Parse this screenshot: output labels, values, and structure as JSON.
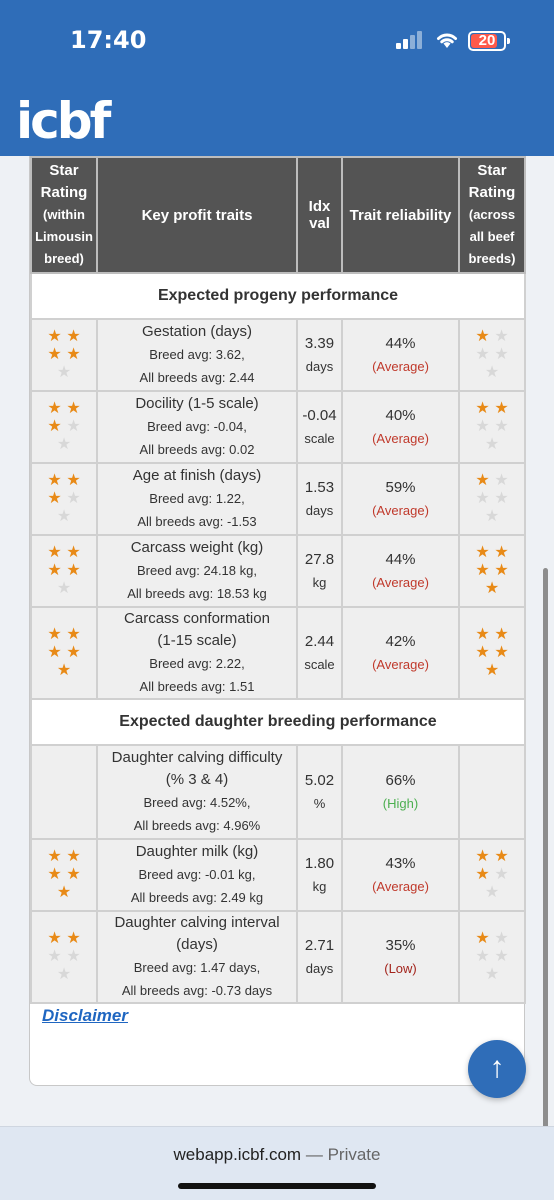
{
  "status": {
    "time": "17:40",
    "battery": "20"
  },
  "app": {
    "logo": "icbf"
  },
  "table": {
    "headers": {
      "star_within": [
        "Star",
        "Rating",
        "(within",
        "Limousin",
        "breed)"
      ],
      "traits": "Key profit traits",
      "idx": [
        "Idx",
        "val"
      ],
      "reliability": "Trait reliability",
      "star_across": [
        "Star",
        "Rating",
        "(across",
        "all beef",
        "breeds)"
      ]
    },
    "sections": [
      {
        "title": "Expected progeny performance",
        "rows": [
          {
            "name": [
              "Gestation (days)"
            ],
            "breed_avg": "Breed avg: 3.62,",
            "all_avg": "All breeds avg: 2.44",
            "idx": "3.39",
            "unit": "days",
            "reliability": "44%",
            "level": "(Average)",
            "stars_within": 4,
            "stars_across": 1
          },
          {
            "name": [
              "Docility (1-5 scale)"
            ],
            "breed_avg": "Breed avg: -0.04,",
            "all_avg": "All breeds avg: 0.02",
            "idx": "-0.04",
            "unit": "scale",
            "reliability": "40%",
            "level": "(Average)",
            "stars_within": 3,
            "stars_across": 2
          },
          {
            "name": [
              "Age at finish (days)"
            ],
            "breed_avg": "Breed avg: 1.22,",
            "all_avg": "All breeds avg: -1.53",
            "idx": "1.53",
            "unit": "days",
            "reliability": "59%",
            "level": "(Average)",
            "stars_within": 3,
            "stars_across": 1
          },
          {
            "name": [
              "Carcass weight (kg)"
            ],
            "breed_avg": "Breed avg: 24.18 kg,",
            "all_avg": "All breeds avg: 18.53 kg",
            "idx": "27.8",
            "unit": "kg",
            "reliability": "44%",
            "level": "(Average)",
            "stars_within": 4,
            "stars_across": 5
          },
          {
            "name": [
              "Carcass conformation",
              "(1-15 scale)"
            ],
            "breed_avg": "Breed avg: 2.22,",
            "all_avg": "All breeds avg: 1.51",
            "idx": "2.44",
            "unit": "scale",
            "reliability": "42%",
            "level": "(Average)",
            "stars_within": 5,
            "stars_across": 5
          }
        ]
      },
      {
        "title": "Expected daughter breeding performance",
        "rows": [
          {
            "name": [
              "Daughter calving difficulty",
              "(% 3 & 4)"
            ],
            "breed_avg": "Breed avg: 4.52%,",
            "all_avg": "All breeds avg: 4.96%",
            "idx": "5.02",
            "unit": "%",
            "reliability": "66%",
            "level": "(High)",
            "stars_within": 0,
            "stars_across": 0
          },
          {
            "name": [
              "Daughter milk (kg)"
            ],
            "breed_avg": "Breed avg: -0.01 kg,",
            "all_avg": "All breeds avg: 2.49 kg",
            "idx": "1.80",
            "unit": "kg",
            "reliability": "43%",
            "level": "(Average)",
            "stars_within": 5,
            "stars_across": 3
          },
          {
            "name": [
              "Daughter calving interval",
              "(days)"
            ],
            "breed_avg": "Breed avg: 1.47 days,",
            "all_avg": "All breeds avg: -0.73 days",
            "idx": "2.71",
            "unit": "days",
            "reliability": "35%",
            "level": "(Low)",
            "stars_within": 2,
            "stars_across": 1
          }
        ]
      }
    ]
  },
  "level_colors": {
    "(Average)": "#c0392b",
    "(High)": "#4caf50",
    "(Low)": "#a3241c"
  },
  "disclaimer": "Disclaimer",
  "browser": {
    "url": "webapp.icbf.com",
    "separator": "—",
    "mode": "Private"
  }
}
